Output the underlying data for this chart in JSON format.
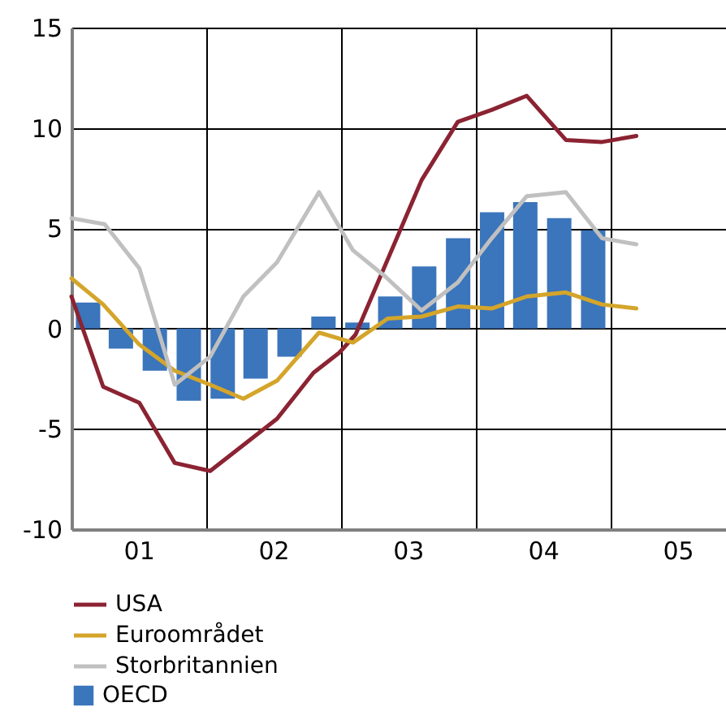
{
  "chart_data": {
    "type": "line",
    "xlim": [
      "2001-01-01",
      "2005-11-10"
    ],
    "ylim": [
      -10,
      15
    ],
    "xticks": [
      {
        "value": "2001-07-02",
        "label": "01"
      },
      {
        "value": "2002-01-01",
        "label": null
      },
      {
        "value": "2002-07-02",
        "label": "02"
      },
      {
        "value": "2003-01-01",
        "label": null
      },
      {
        "value": "2003-07-02",
        "label": "03"
      },
      {
        "value": "2004-01-01",
        "label": null
      },
      {
        "value": "2004-07-02",
        "label": "04"
      },
      {
        "value": "2005-01-01",
        "label": null
      },
      {
        "value": "2005-07-02",
        "label": "05"
      }
    ],
    "yticks": [
      -10,
      -5,
      0,
      5,
      10,
      15
    ],
    "grid": true,
    "legend": "bottom",
    "series": [
      {
        "name": "OECD",
        "type": "bar",
        "color": "#3b75bb",
        "x": [
          "2001-02-15",
          "2001-05-15",
          "2001-08-15",
          "2001-11-15",
          "2002-02-15",
          "2002-05-15",
          "2002-08-15",
          "2002-11-15",
          "2003-02-15",
          "2003-05-15",
          "2003-08-15",
          "2003-11-15",
          "2004-02-15",
          "2004-05-15",
          "2004-08-15",
          "2004-11-15"
        ],
        "values": [
          1.3,
          -1.0,
          -2.1,
          -3.6,
          -3.5,
          -2.5,
          -1.4,
          0.6,
          0.3,
          1.6,
          3.1,
          4.5,
          5.8,
          6.3,
          5.5,
          4.9
        ]
      },
      {
        "name": "USA",
        "color": "#8b2332",
        "x": [
          "2001-01-01",
          "2001-03-28",
          "2001-07-04",
          "2001-10-08",
          "2002-01-12",
          "2002-07-12",
          "2002-10-19",
          "2002-12-28",
          "2003-02-10",
          "2003-08-08",
          "2003-11-14",
          "2004-02-14",
          "2004-05-19",
          "2004-09-02",
          "2004-12-09",
          "2005-03-12"
        ],
        "values": [
          1.6,
          -2.9,
          -3.7,
          -6.7,
          -7.1,
          -4.5,
          -2.2,
          -1.2,
          -0.3,
          7.4,
          10.3,
          10.9,
          11.6,
          9.4,
          9.3,
          9.6
        ]
      },
      {
        "name": "Euroområdet",
        "color": "#d4a52a",
        "x": [
          "2001-01-01",
          "2001-03-28",
          "2001-07-04",
          "2001-10-08",
          "2002-01-12",
          "2002-04-12",
          "2002-07-12",
          "2002-11-03",
          "2003-02-03",
          "2003-05-08",
          "2003-08-08",
          "2003-11-14",
          "2004-02-14",
          "2004-05-19",
          "2004-09-02",
          "2004-12-09",
          "2005-03-12"
        ],
        "values": [
          2.5,
          1.2,
          -0.8,
          -2.1,
          -2.8,
          -3.5,
          -2.6,
          -0.2,
          -0.7,
          0.5,
          0.6,
          1.1,
          1.0,
          1.6,
          1.8,
          1.2,
          1.0
        ]
      },
      {
        "name": "Storbritannien",
        "color": "#c0c0c0",
        "x": [
          "2001-01-01",
          "2001-04-01",
          "2001-07-04",
          "2001-10-08",
          "2002-01-12",
          "2002-04-12",
          "2002-07-12",
          "2002-11-03",
          "2003-02-03",
          "2003-05-01",
          "2003-08-08",
          "2003-11-14",
          "2004-02-14",
          "2004-05-19",
          "2004-09-02",
          "2004-12-09",
          "2005-03-12"
        ],
        "values": [
          5.5,
          5.2,
          3.0,
          -2.8,
          -1.4,
          1.6,
          3.3,
          6.8,
          3.9,
          2.6,
          0.9,
          2.3,
          4.5,
          6.6,
          6.8,
          4.5,
          4.2
        ]
      }
    ]
  }
}
